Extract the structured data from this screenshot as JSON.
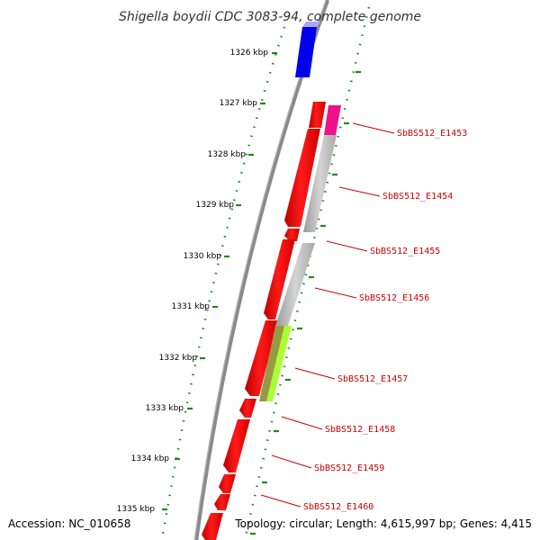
{
  "title": "Shigella boydii CDC 3083-94, complete genome",
  "accession": "Accession: NC_010658",
  "topology": "Topology: circular; Length: 4,615,997 bp; Genes: 4,415",
  "kbp_labels": [
    "1326 kbp",
    "1327 kbp",
    "1328 kbp",
    "1329 kbp",
    "1330 kbp",
    "1331 kbp",
    "1332 kbp",
    "1333 kbp",
    "1334 kbp",
    "1335 kbp"
  ],
  "gene_labels": [
    "SbBS512_E1453",
    "SbBS512_E1454",
    "SbBS512_E1455",
    "SbBS512_E1456",
    "SbBS512_E1457",
    "SbBS512_E1458",
    "SbBS512_E1459",
    "SbBS512_E1460"
  ],
  "colors": {
    "gene_red": "#ff0000",
    "tick_green": "#228822",
    "backbone_gray": "#888888",
    "label_red": "#cc0000",
    "blue_feature": "#0000ee",
    "magenta_feature": "#ee1188",
    "gray_feature": "#bbbbbb",
    "olive_feature": "#999944",
    "lime_feature": "#aaff33"
  }
}
